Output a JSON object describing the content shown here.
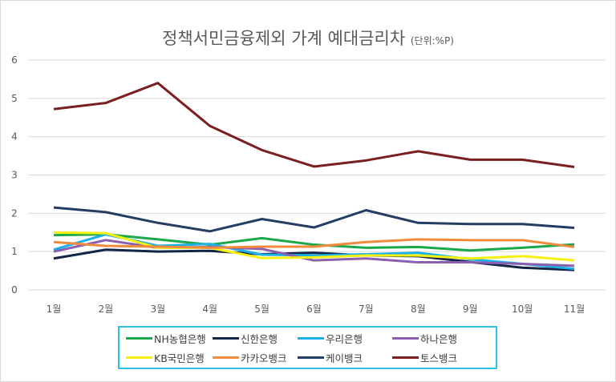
{
  "chart_data": {
    "type": "line",
    "title": "정책서민금융제외 가계 예대금리차",
    "unit_note": "(단위:%P)",
    "categories": [
      "1월",
      "2월",
      "3월",
      "4월",
      "5월",
      "6월",
      "7월",
      "8월",
      "9월",
      "10월",
      "11월"
    ],
    "ylim": [
      0,
      6
    ],
    "yticks": [
      0,
      1,
      2,
      3,
      4,
      5,
      6
    ],
    "grid": true,
    "legend_position": "bottom",
    "series": [
      {
        "name": "NH농협은행",
        "color": "#1aa84a",
        "values": [
          1.43,
          1.45,
          1.32,
          1.18,
          1.35,
          1.18,
          1.1,
          1.12,
          1.03,
          1.1,
          1.19
        ]
      },
      {
        "name": "신한은행",
        "color": "#14254a",
        "values": [
          0.82,
          1.05,
          1.0,
          1.02,
          0.93,
          0.97,
          0.9,
          0.88,
          0.73,
          0.58,
          0.52
        ]
      },
      {
        "name": "우리은행",
        "color": "#1ab0e8",
        "values": [
          1.05,
          1.45,
          1.15,
          1.2,
          0.92,
          0.9,
          0.93,
          0.97,
          0.8,
          0.68,
          0.55
        ]
      },
      {
        "name": "하나은행",
        "color": "#8a5fb0",
        "values": [
          1.0,
          1.3,
          1.1,
          1.12,
          1.07,
          0.77,
          0.82,
          0.72,
          0.72,
          0.68,
          0.63
        ]
      },
      {
        "name": "KB국민은행",
        "color": "#f5f00f",
        "values": [
          1.5,
          1.48,
          1.1,
          1.1,
          0.83,
          0.85,
          0.9,
          0.9,
          0.82,
          0.88,
          0.77
        ]
      },
      {
        "name": "카카오뱅크",
        "color": "#f08a3c",
        "values": [
          1.25,
          1.15,
          1.13,
          1.1,
          1.13,
          1.13,
          1.25,
          1.32,
          1.3,
          1.3,
          1.12
        ]
      },
      {
        "name": "케이뱅크",
        "color": "#233d63",
        "values": [
          2.15,
          2.03,
          1.75,
          1.53,
          1.85,
          1.63,
          2.08,
          1.75,
          1.72,
          1.72,
          1.62
        ]
      },
      {
        "name": "토스뱅크",
        "color": "#7a1f1f",
        "values": [
          4.72,
          4.88,
          5.4,
          4.28,
          3.65,
          3.22,
          3.38,
          3.62,
          3.4,
          3.4,
          3.21
        ]
      }
    ]
  }
}
